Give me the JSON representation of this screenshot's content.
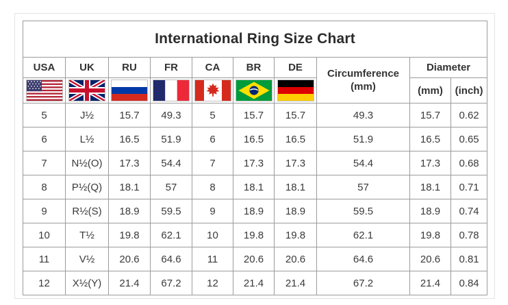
{
  "title": "International Ring Size Chart",
  "table": {
    "country_columns": [
      {
        "label": "USA",
        "flag": "us-flag"
      },
      {
        "label": "UK",
        "flag": "uk-flag"
      },
      {
        "label": "RU",
        "flag": "ru-flag"
      },
      {
        "label": "FR",
        "flag": "fr-flag"
      },
      {
        "label": "CA",
        "flag": "ca-flag"
      },
      {
        "label": "BR",
        "flag": "br-flag"
      },
      {
        "label": "DE",
        "flag": "de-flag"
      }
    ],
    "circumference_header": "Circumference",
    "circumference_unit": "(mm)",
    "diameter_header": "Diameter",
    "diameter_units": {
      "mm": "(mm)",
      "inch": "(inch)"
    }
  },
  "colors": {
    "border": "#9b9b9b",
    "text": "#3a3a3a",
    "background": "#ffffff",
    "flag_us_blue": "#3c3b6e",
    "flag_us_red": "#b22234",
    "flag_uk_blue": "#012169",
    "flag_uk_red": "#c8102e",
    "flag_ru_blue": "#0039a6",
    "flag_ru_red": "#d52b1e",
    "flag_fr_blue": "#212a6b",
    "flag_fr_red": "#ed2939",
    "flag_ca_red": "#d52b1e",
    "flag_br_green": "#009c3b",
    "flag_br_yellow": "#ffdf00",
    "flag_br_blue": "#002776",
    "flag_de_black": "#000000",
    "flag_de_red": "#dd0000",
    "flag_de_gold": "#ffce00"
  },
  "chart_data": {
    "type": "table",
    "title": "International Ring Size Chart",
    "columns": [
      "USA",
      "UK",
      "RU",
      "FR",
      "CA",
      "BR",
      "DE",
      "Circumference (mm)",
      "Diameter (mm)",
      "Diameter (inch)"
    ],
    "rows": [
      [
        "5",
        "J½",
        "15.7",
        "49.3",
        "5",
        "15.7",
        "15.7",
        "49.3",
        "15.7",
        "0.62"
      ],
      [
        "6",
        "L½",
        "16.5",
        "51.9",
        "6",
        "16.5",
        "16.5",
        "51.9",
        "16.5",
        "0.65"
      ],
      [
        "7",
        "N½(O)",
        "17.3",
        "54.4",
        "7",
        "17.3",
        "17.3",
        "54.4",
        "17.3",
        "0.68"
      ],
      [
        "8",
        "P½(Q)",
        "18.1",
        "57",
        "8",
        "18.1",
        "18.1",
        "57",
        "18.1",
        "0.71"
      ],
      [
        "9",
        "R½(S)",
        "18.9",
        "59.5",
        "9",
        "18.9",
        "18.9",
        "59.5",
        "18.9",
        "0.74"
      ],
      [
        "10",
        "T½",
        "19.8",
        "62.1",
        "10",
        "19.8",
        "19.8",
        "62.1",
        "19.8",
        "0.78"
      ],
      [
        "11",
        "V½",
        "20.6",
        "64.6",
        "11",
        "20.6",
        "20.6",
        "64.6",
        "20.6",
        "0.81"
      ],
      [
        "12",
        "X½(Y)",
        "21.4",
        "67.2",
        "12",
        "21.4",
        "21.4",
        "67.2",
        "21.4",
        "0.84"
      ]
    ]
  }
}
